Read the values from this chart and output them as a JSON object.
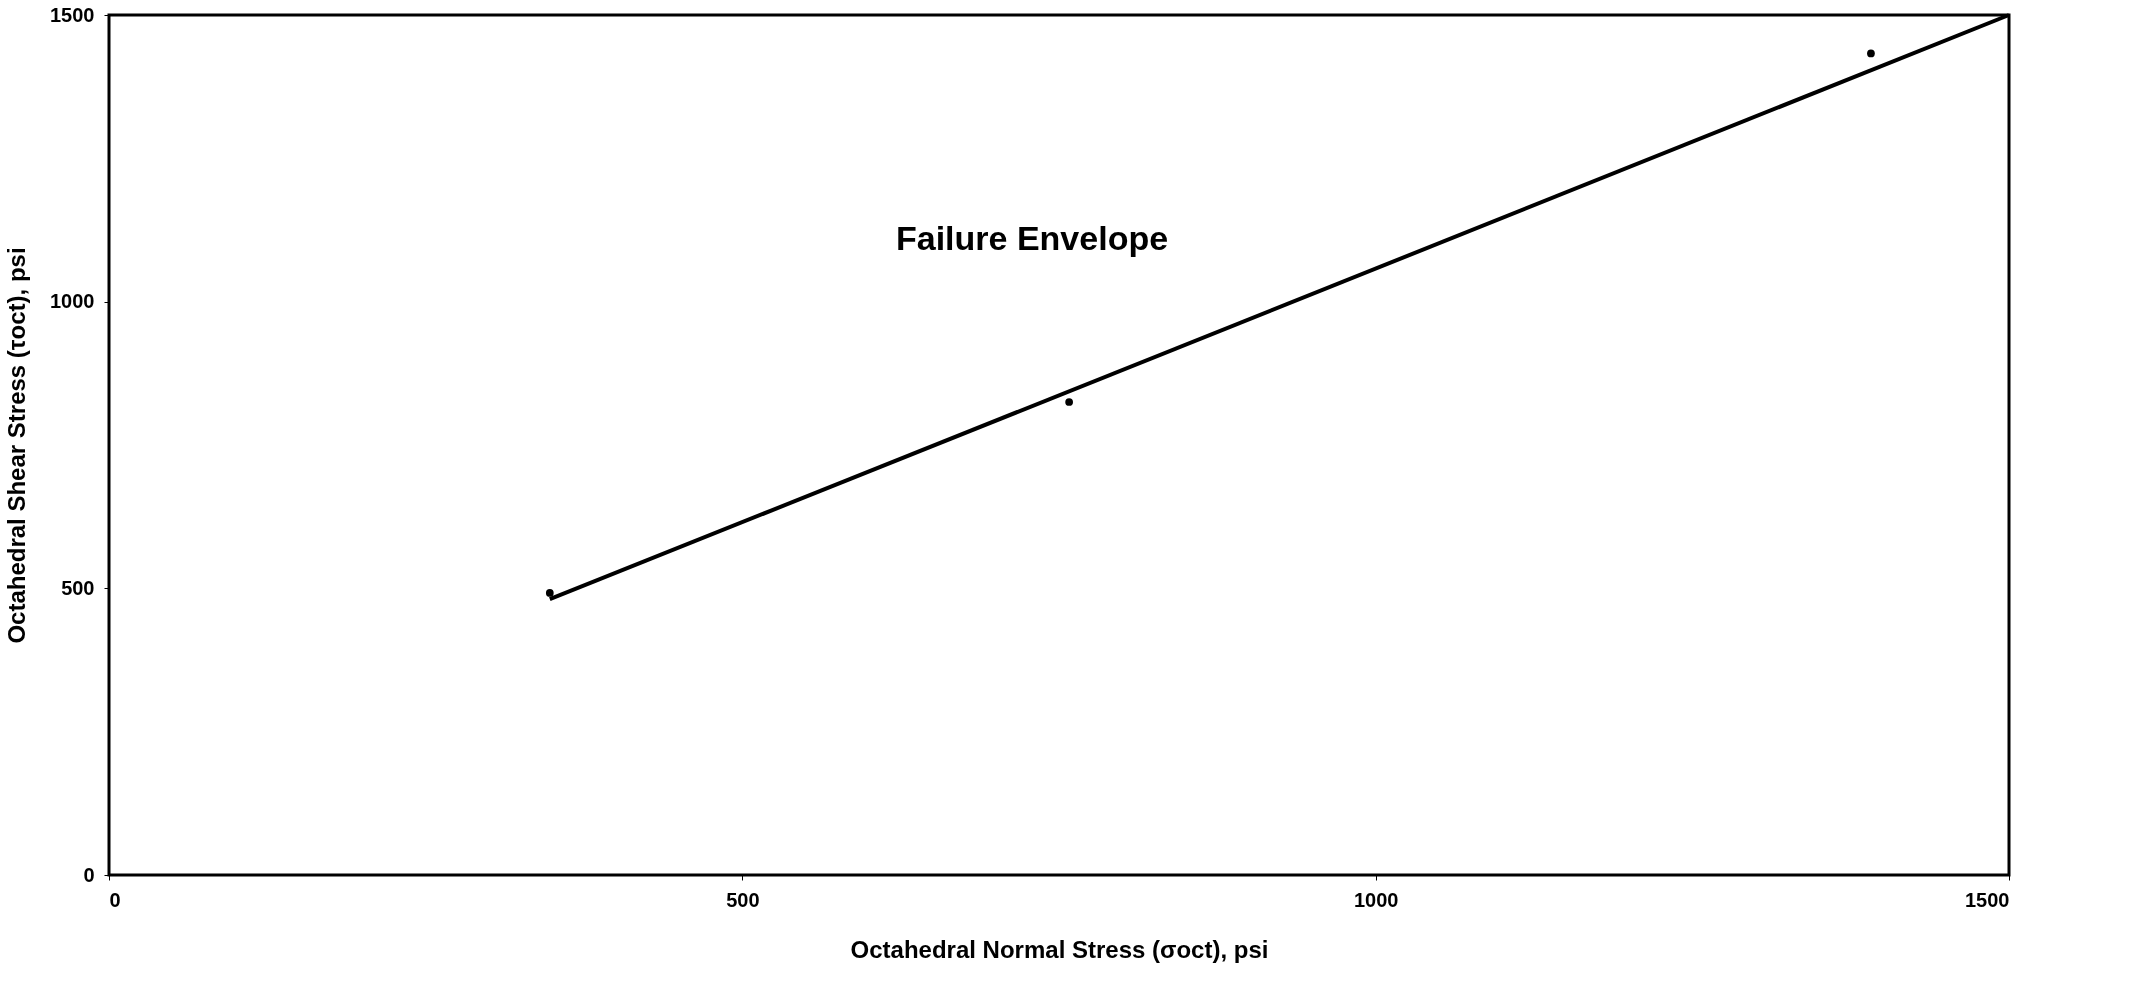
{
  "chart_data": {
    "type": "scatter",
    "xlabel": "Octahedral Normal Stress (σoct), psi",
    "ylabel": "Octahedral Shear Stress (τoct), psi",
    "xlim": [
      0,
      1500
    ],
    "xticks": [
      0,
      500,
      1000,
      1500
    ],
    "ylim": [
      0,
      1500
    ],
    "yticks": [
      0,
      500,
      1000,
      1500
    ],
    "grid": false,
    "legend": false,
    "marker": "circle",
    "series": [
      {
        "color": "#000000",
        "x": [
          348,
          758,
          1391
        ],
        "values": [
          492,
          825,
          1433
        ]
      },
      {
        "type": "line",
        "color": "#000000",
        "line_style": "solid",
        "marker": "none",
        "x": [
          348,
          1500
        ],
        "values": [
          481,
          1500
        ]
      }
    ],
    "annotations": [
      "Failure Envelope"
    ]
  }
}
